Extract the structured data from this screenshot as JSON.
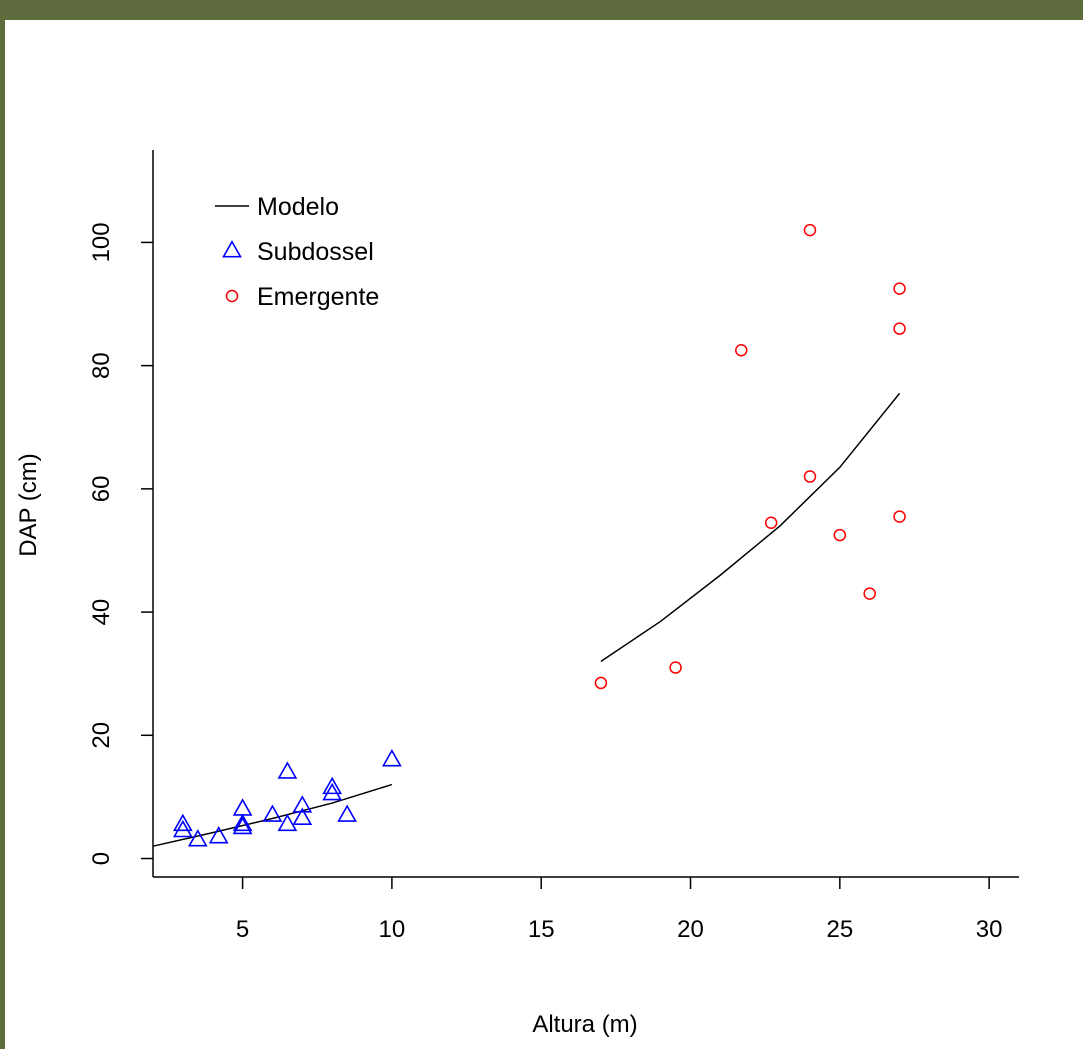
{
  "frame": {
    "border_color": "#5e6b3c"
  },
  "chart_data": {
    "type": "scatter",
    "title": "",
    "xlabel": "Altura (m)",
    "ylabel": "DAP (cm)",
    "xlim": [
      2,
      31
    ],
    "ylim": [
      -3,
      115
    ],
    "xticks": [
      5,
      10,
      15,
      20,
      25,
      30
    ],
    "yticks": [
      0,
      20,
      40,
      60,
      80,
      100
    ],
    "grid": false,
    "legend_position": "top-left",
    "legend": [
      {
        "label": "Modelo",
        "marker": "line",
        "color": "#000000"
      },
      {
        "label": "Subdossel",
        "marker": "triangle",
        "color": "#0000ff"
      },
      {
        "label": "Emergente",
        "marker": "circle",
        "color": "#ff0000"
      }
    ],
    "series": [
      {
        "name": "Subdossel",
        "marker": "triangle",
        "color": "#0000ff",
        "points": [
          [
            3,
            5.5
          ],
          [
            3,
            4.5
          ],
          [
            3.5,
            3
          ],
          [
            4.2,
            3.5
          ],
          [
            5,
            8
          ],
          [
            5,
            5.5
          ],
          [
            5,
            5
          ],
          [
            6,
            7
          ],
          [
            6.5,
            14
          ],
          [
            6.5,
            5.5
          ],
          [
            7,
            8.5
          ],
          [
            7,
            6.5
          ],
          [
            8,
            11.5
          ],
          [
            8,
            10.5
          ],
          [
            8.5,
            7
          ],
          [
            10,
            16
          ]
        ]
      },
      {
        "name": "Emergente",
        "marker": "circle",
        "color": "#ff0000",
        "points": [
          [
            17,
            28.5
          ],
          [
            19.5,
            31
          ],
          [
            21.7,
            82.5
          ],
          [
            22.7,
            54.5
          ],
          [
            24,
            102
          ],
          [
            24,
            62
          ],
          [
            25,
            52.5
          ],
          [
            26,
            43
          ],
          [
            27,
            92.5
          ],
          [
            27,
            86
          ],
          [
            27,
            55.5
          ]
        ]
      },
      {
        "name": "Modelo",
        "marker": "line",
        "color": "#000000",
        "segments": [
          [
            [
              2,
              2
            ],
            [
              4,
              4.2
            ],
            [
              6,
              6.5
            ],
            [
              8,
              9
            ],
            [
              10,
              12
            ]
          ],
          [
            [
              17,
              32
            ],
            [
              19,
              38.5
            ],
            [
              21,
              46
            ],
            [
              23,
              54
            ],
            [
              25,
              63.5
            ],
            [
              27,
              75.5
            ]
          ]
        ]
      }
    ]
  }
}
